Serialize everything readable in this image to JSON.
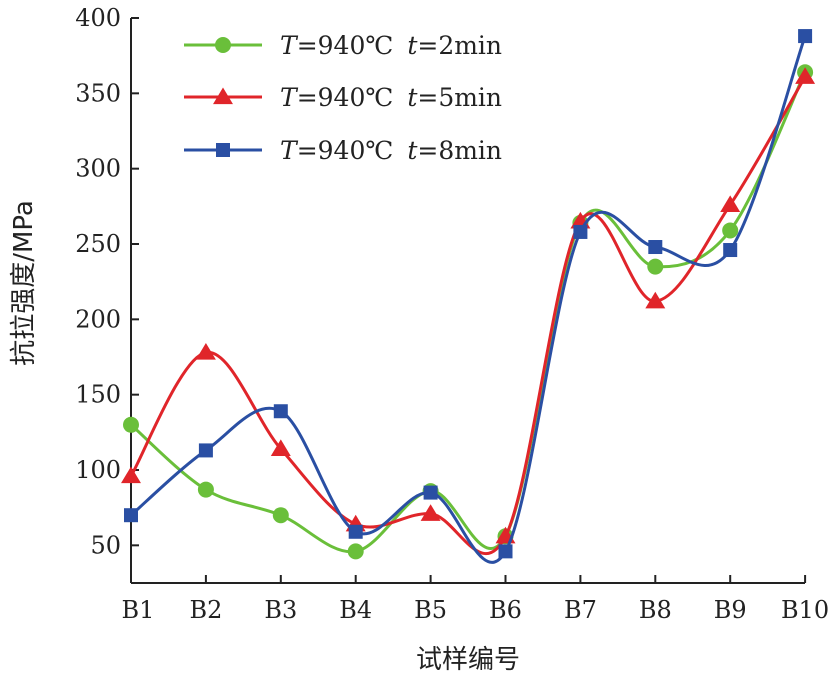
{
  "chart_data": {
    "type": "line",
    "title": "",
    "xlabel": "试样编号",
    "ylabel": "抗拉强度/MPa",
    "categories": [
      "B1",
      "B2",
      "B3",
      "B4",
      "B5",
      "B6",
      "B7",
      "B8",
      "B9",
      "B10"
    ],
    "yticks": [
      50,
      100,
      150,
      200,
      250,
      300,
      350,
      400
    ],
    "ylim": [
      25,
      400
    ],
    "grid": false,
    "legend_position": "top-left",
    "series": [
      {
        "name": "T=940℃ t=2min",
        "legend_parts": {
          "v1": "T",
          "e1": "=940℃",
          "v2": "t",
          "e2": "=2min"
        },
        "color": "#6abf3a",
        "marker": "circle",
        "values": [
          130,
          87,
          70,
          46,
          86,
          56,
          264,
          235,
          259,
          364
        ]
      },
      {
        "name": "T=940℃ t=5min",
        "legend_parts": {
          "v1": "T",
          "e1": "=940℃",
          "v2": "t",
          "e2": "=5min"
        },
        "color": "#e0252a",
        "marker": "triangle",
        "values": [
          96,
          178,
          114,
          64,
          71,
          56,
          265,
          212,
          276,
          361
        ]
      },
      {
        "name": "T=940℃ t=8min",
        "legend_parts": {
          "v1": "T",
          "e1": "=940℃",
          "v2": "t",
          "e2": "=8min"
        },
        "color": "#2a4fa3",
        "marker": "square",
        "values": [
          70,
          113,
          139,
          59,
          85,
          46,
          258,
          248,
          246,
          388
        ]
      }
    ]
  }
}
